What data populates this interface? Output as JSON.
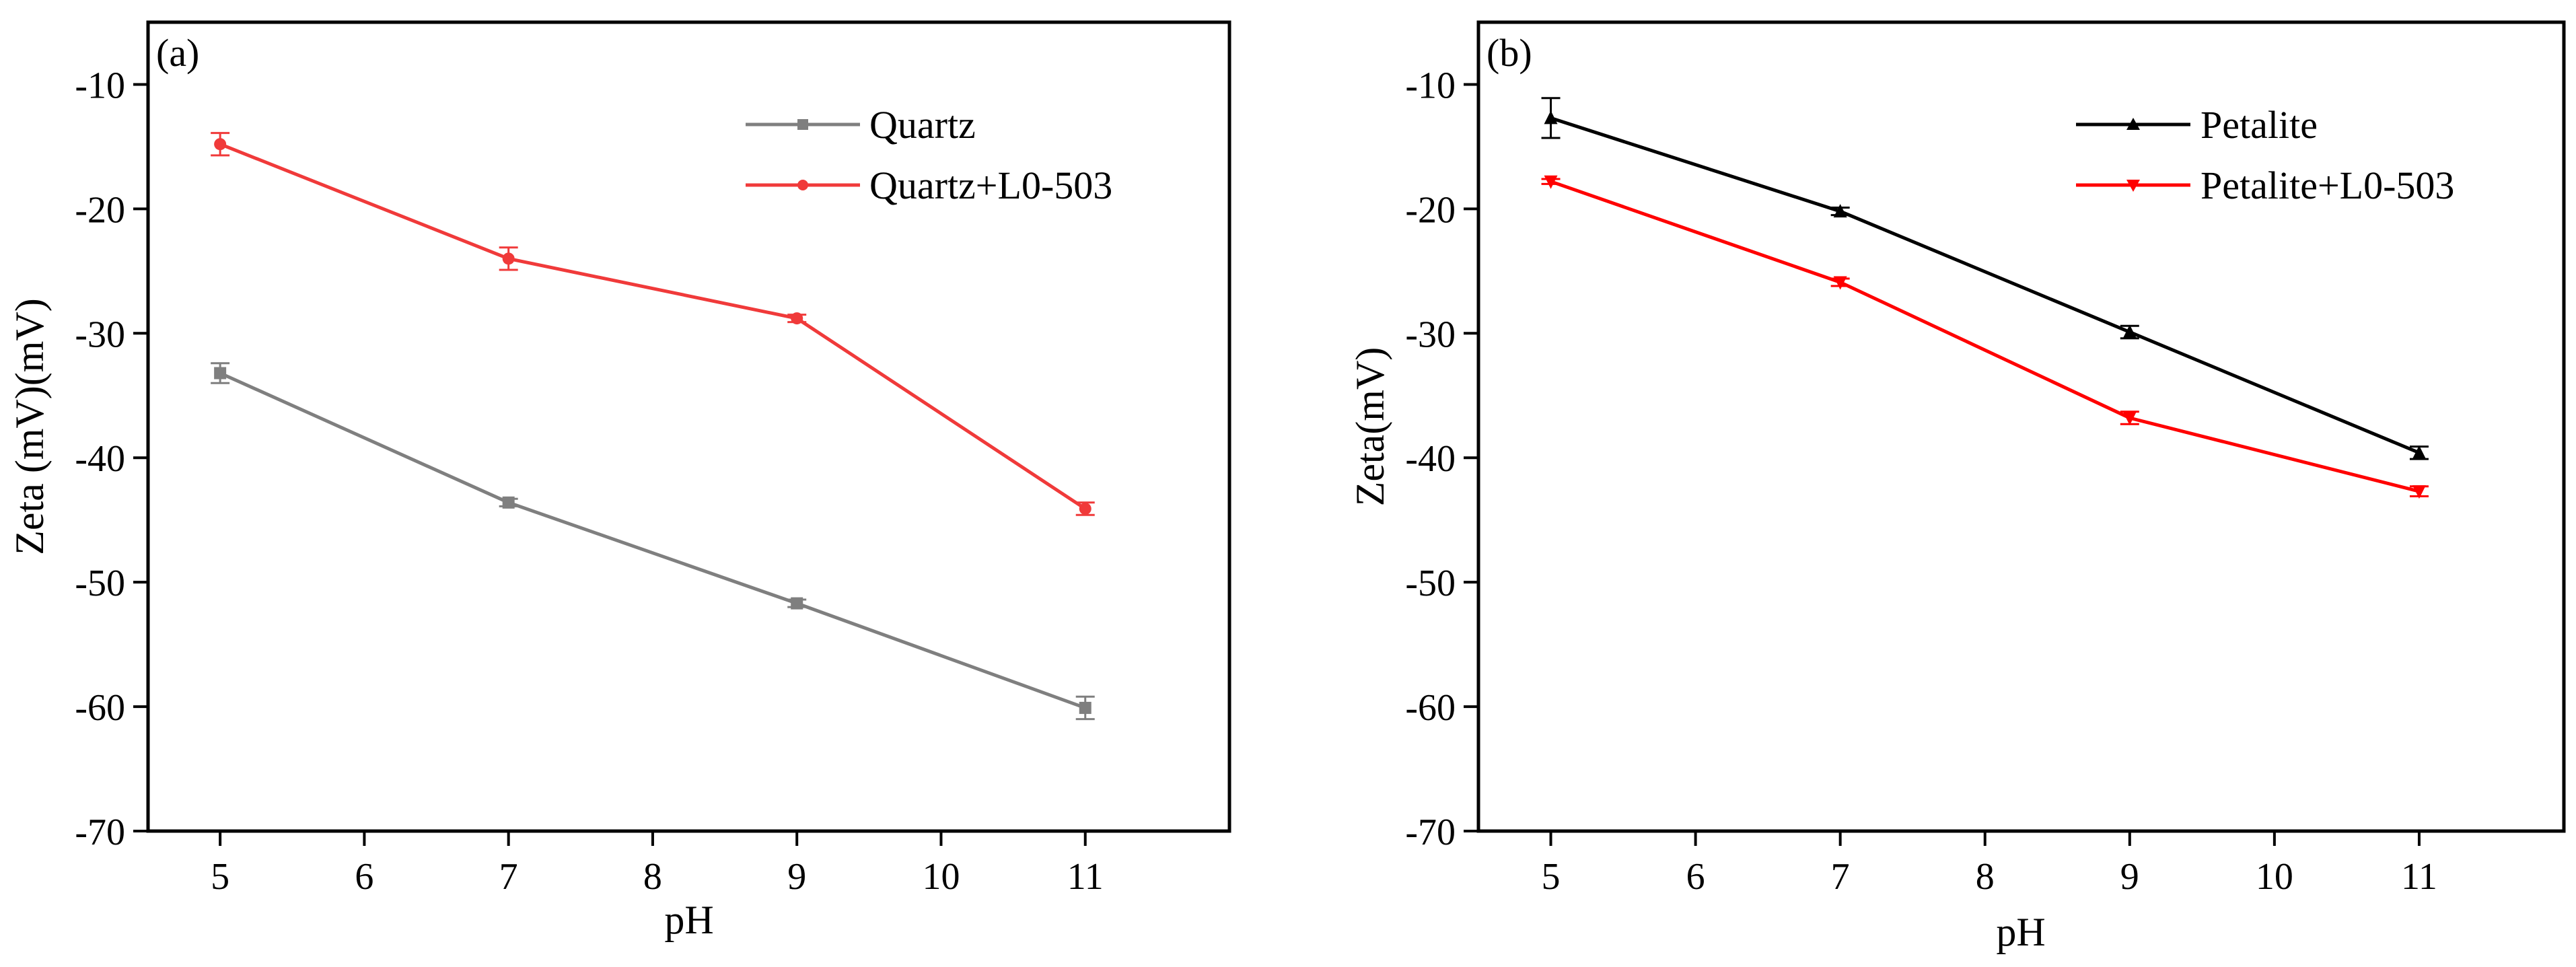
{
  "chart_data": [
    {
      "type": "line",
      "panel_label": "(a)",
      "title": "",
      "xlabel": "pH",
      "ylabel": "Zeta (mV)(mV)",
      "x_ticks": [
        5,
        6,
        7,
        8,
        9,
        10,
        11
      ],
      "y_ticks": [
        -10,
        -20,
        -30,
        -40,
        -50,
        -60,
        -70
      ],
      "xlim": [
        4.5,
        12.0
      ],
      "ylim": [
        -70,
        -5
      ],
      "legend_position": "top-right",
      "series": [
        {
          "name": "Quartz",
          "color": "#7f7f7f",
          "marker": "square",
          "x": [
            5,
            7,
            9,
            11
          ],
          "y": [
            -33.2,
            -43.6,
            -51.7,
            -60.1
          ],
          "err": [
            0.8,
            0.3,
            0.3,
            0.9
          ]
        },
        {
          "name": "Quartz+L0-503",
          "color": "#f03a3a",
          "marker": "circle",
          "x": [
            5,
            7,
            9,
            11
          ],
          "y": [
            -14.8,
            -24.0,
            -28.8,
            -44.1
          ],
          "err": [
            0.9,
            0.9,
            0.3,
            0.5
          ]
        }
      ]
    },
    {
      "type": "line",
      "panel_label": "(b)",
      "title": "",
      "xlabel": "pH",
      "ylabel": "Zeta(mV)",
      "x_ticks": [
        5,
        6,
        7,
        8,
        9,
        10,
        11
      ],
      "y_ticks": [
        -10,
        -20,
        -30,
        -40,
        -50,
        -60,
        -70
      ],
      "xlim": [
        4.5,
        12.0
      ],
      "ylim": [
        -70,
        -5
      ],
      "legend_position": "top-right",
      "series": [
        {
          "name": "Petalite",
          "color": "#000000",
          "marker": "triangle-up",
          "x": [
            5,
            7,
            9,
            11
          ],
          "y": [
            -12.7,
            -20.2,
            -29.9,
            -39.6
          ],
          "err": [
            1.6,
            0.3,
            0.5,
            0.5
          ]
        },
        {
          "name": "Petalite+L0-503",
          "color": "#ff0000",
          "marker": "triangle-down",
          "x": [
            5,
            7,
            9,
            11
          ],
          "y": [
            -17.8,
            -25.9,
            -36.8,
            -42.7
          ],
          "err": [
            0.2,
            0.3,
            0.5,
            0.4
          ]
        }
      ]
    }
  ]
}
